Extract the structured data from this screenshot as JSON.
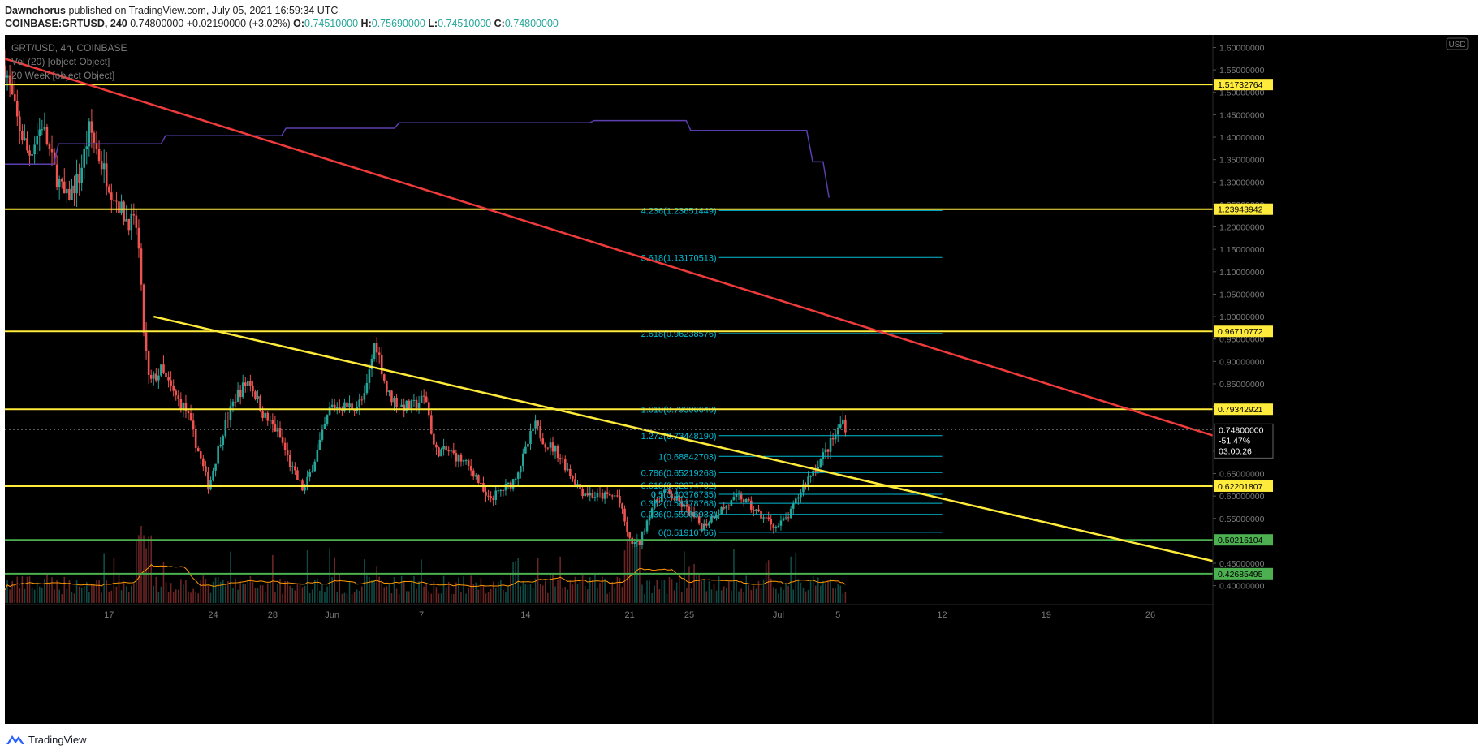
{
  "header": {
    "author": "Dawnchorus",
    "published_text": "published on TradingView.com, July 05, 2021 16:59:34 UTC",
    "symbol_line": "COINBASE:GRTUSD, 240",
    "last_price": "0.74800000",
    "change": "+0.02190000 (+3.02%)",
    "o_label": "O:",
    "o_value": "0.74510000",
    "h_label": "H:",
    "h_value": "0.75690000",
    "l_label": "L:",
    "l_value": "0.74510000",
    "c_label": "C:",
    "c_value": "0.74800000"
  },
  "legend": {
    "symbol": "GRT/USD, 4h, COINBASE",
    "volume": "Vol (20) [object Object]",
    "week": "20 Week [object Object]"
  },
  "footer": {
    "brand": "TradingView"
  },
  "colors": {
    "background": "#000000",
    "up": "#26a69a",
    "down": "#ef5350",
    "horizontal_level": "#ffeb3b",
    "green_level": "#4caf50",
    "red_trend": "#ef3b3b",
    "yellow_trend": "#ffeb3b",
    "fib": "#00bcd4",
    "ma_line": "#5b3fb0",
    "vol_ma": "#ff9800",
    "axis_text": "#7b7b7b"
  },
  "chart_data": {
    "type": "candlestick",
    "title": "GRT/USD, 4h, COINBASE",
    "currency_badge": "USD",
    "y_ticks": [
      "1.60000000",
      "1.55000000",
      "1.50000000",
      "1.45000000",
      "1.40000000",
      "1.35000000",
      "1.30000000",
      "1.25000000",
      "1.20000000",
      "1.15000000",
      "1.10000000",
      "1.05000000",
      "1.00000000",
      "0.95000000",
      "0.90000000",
      "0.85000000",
      "0.80000000",
      "0.75000000",
      "0.70000000",
      "0.65000000",
      "0.60000000",
      "0.55000000",
      "0.50000000",
      "0.45000000",
      "0.40000000"
    ],
    "x_ticks": [
      {
        "label": "17",
        "day": 17
      },
      {
        "label": "24",
        "day": 24
      },
      {
        "label": "28",
        "day": 28
      },
      {
        "label": "Jun",
        "day": 32
      },
      {
        "label": "7",
        "day": 38
      },
      {
        "label": "14",
        "day": 45
      },
      {
        "label": "21",
        "day": 52
      },
      {
        "label": "25",
        "day": 56
      },
      {
        "label": "Jul",
        "day": 62
      },
      {
        "label": "5",
        "day": 66
      },
      {
        "label": "12",
        "day": 73
      },
      {
        "label": "19",
        "day": 80
      },
      {
        "label": "26",
        "day": 87
      }
    ],
    "x_axis": {
      "start_day": 10,
      "end_day": 91.2
    },
    "y_range": [
      0.365,
      1.628
    ],
    "price_keypoints": [
      [
        10,
        1.56
      ],
      [
        10.8,
        1.44
      ],
      [
        11.6,
        1.36
      ],
      [
        12.5,
        1.43
      ],
      [
        13.3,
        1.33
      ],
      [
        14.1,
        1.26
      ],
      [
        15.0,
        1.31
      ],
      [
        15.7,
        1.42
      ],
      [
        16.4,
        1.35
      ],
      [
        17.2,
        1.28
      ],
      [
        18.1,
        1.22
      ],
      [
        18.9,
        1.2
      ],
      [
        19.3,
        0.98
      ],
      [
        19.7,
        0.85
      ],
      [
        20.5,
        0.88
      ],
      [
        21.3,
        0.83
      ],
      [
        22.2,
        0.79
      ],
      [
        23.0,
        0.7
      ],
      [
        23.7,
        0.62
      ],
      [
        24.6,
        0.74
      ],
      [
        25.5,
        0.82
      ],
      [
        26.4,
        0.86
      ],
      [
        27.4,
        0.78
      ],
      [
        28.4,
        0.74
      ],
      [
        29.3,
        0.66
      ],
      [
        30.1,
        0.61
      ],
      [
        31.0,
        0.7
      ],
      [
        31.9,
        0.8
      ],
      [
        32.7,
        0.8
      ],
      [
        33.6,
        0.8
      ],
      [
        34.2,
        0.82
      ],
      [
        34.9,
        0.95
      ],
      [
        35.7,
        0.83
      ],
      [
        36.6,
        0.8
      ],
      [
        37.4,
        0.8
      ],
      [
        38.3,
        0.82
      ],
      [
        38.9,
        0.7
      ],
      [
        39.8,
        0.7
      ],
      [
        40.7,
        0.68
      ],
      [
        41.6,
        0.65
      ],
      [
        42.4,
        0.59
      ],
      [
        43.3,
        0.61
      ],
      [
        44.1,
        0.63
      ],
      [
        44.9,
        0.69
      ],
      [
        45.6,
        0.76
      ],
      [
        46.3,
        0.72
      ],
      [
        47.1,
        0.7
      ],
      [
        48.0,
        0.65
      ],
      [
        48.8,
        0.61
      ],
      [
        49.7,
        0.6
      ],
      [
        50.5,
        0.6
      ],
      [
        51.2,
        0.6
      ],
      [
        52.0,
        0.5
      ],
      [
        52.6,
        0.49
      ],
      [
        53.4,
        0.57
      ],
      [
        54.3,
        0.61
      ],
      [
        55.2,
        0.59
      ],
      [
        56.1,
        0.56
      ],
      [
        56.9,
        0.53
      ],
      [
        57.7,
        0.56
      ],
      [
        58.6,
        0.58
      ],
      [
        59.4,
        0.6
      ],
      [
        60.3,
        0.57
      ],
      [
        61.1,
        0.55
      ],
      [
        61.9,
        0.53
      ],
      [
        62.8,
        0.56
      ],
      [
        63.6,
        0.62
      ],
      [
        64.4,
        0.66
      ],
      [
        65.2,
        0.7
      ],
      [
        65.9,
        0.74
      ],
      [
        66.3,
        0.77
      ],
      [
        66.6,
        0.748
      ]
    ],
    "last_price": {
      "value": 0.748,
      "label": "0.74800000",
      "change": "-51.47%",
      "countdown": "03:00:26"
    },
    "horizontal_levels": [
      {
        "value": 1.51732764,
        "label": "1.51732764",
        "color": "#ffeb3b"
      },
      {
        "value": 1.23943942,
        "label": "1.23943942",
        "color": "#ffeb3b"
      },
      {
        "value": 0.96710772,
        "label": "0.96710772",
        "color": "#ffeb3b"
      },
      {
        "value": 0.79342921,
        "label": "0.79342921",
        "color": "#ffeb3b"
      },
      {
        "value": 0.62201807,
        "label": "0.62201807",
        "color": "#ffeb3b"
      },
      {
        "value": 0.50216104,
        "label": "0.50216104",
        "color": "#4caf50"
      },
      {
        "value": 0.42685495,
        "label": "0.42685495",
        "color": "#4caf50"
      }
    ],
    "fib_levels": [
      {
        "ratio": "4.236",
        "value": 1.23651449,
        "label": "4.236(1.23651449)"
      },
      {
        "ratio": "3.618",
        "value": 1.13170513,
        "label": "3.618(1.13170513)"
      },
      {
        "ratio": "2.618",
        "value": 0.96238576,
        "label": "2.618(0.96238576)"
      },
      {
        "ratio": "1.618",
        "value": 0.7930664,
        "label": "1.618(0.79306640)"
      },
      {
        "ratio": "1.272",
        "value": 0.7344819,
        "label": "1.272(0.73448190)"
      },
      {
        "ratio": "1",
        "value": 0.68842703,
        "label": "1(0.68842703)"
      },
      {
        "ratio": "0.786",
        "value": 0.65219268,
        "label": "0.786(0.65219268)"
      },
      {
        "ratio": "0.618",
        "value": 0.62374702,
        "label": "0.618(0.62374702)"
      },
      {
        "ratio": "0.5",
        "value": 0.60376735,
        "label": "0.5(0.60376735)"
      },
      {
        "ratio": "0.382",
        "value": 0.58378768,
        "label": "0.382(0.58378768)"
      },
      {
        "ratio": "0.236",
        "value": 0.55906933,
        "label": "0.236(0.55906933)"
      },
      {
        "ratio": "0",
        "value": 0.51910766,
        "label": "0(0.51910766)"
      }
    ],
    "fib_x_range": [
      58,
      73
    ],
    "trend_lines": [
      {
        "name": "red-downtrend",
        "color": "#ef3b3b",
        "points": [
          [
            10,
            1.575
          ],
          [
            91.2,
            0.735
          ]
        ]
      },
      {
        "name": "yellow-downtrend",
        "color": "#ffeb3b",
        "points": [
          [
            20,
            1.0
          ],
          [
            91.2,
            0.455
          ]
        ]
      }
    ],
    "ma_20_week": [
      [
        10,
        1.34
      ],
      [
        13.3,
        1.34
      ],
      [
        13.6,
        1.385
      ],
      [
        20.5,
        1.385
      ],
      [
        20.8,
        1.403
      ],
      [
        28.6,
        1.403
      ],
      [
        28.9,
        1.42
      ],
      [
        36.2,
        1.42
      ],
      [
        36.5,
        1.432
      ],
      [
        49.3,
        1.432
      ],
      [
        49.6,
        1.437
      ],
      [
        55.8,
        1.437
      ],
      [
        56.1,
        1.415
      ],
      [
        63.9,
        1.415
      ],
      [
        64.3,
        1.345
      ],
      [
        65.0,
        1.345
      ],
      [
        65.4,
        1.265
      ]
    ]
  }
}
